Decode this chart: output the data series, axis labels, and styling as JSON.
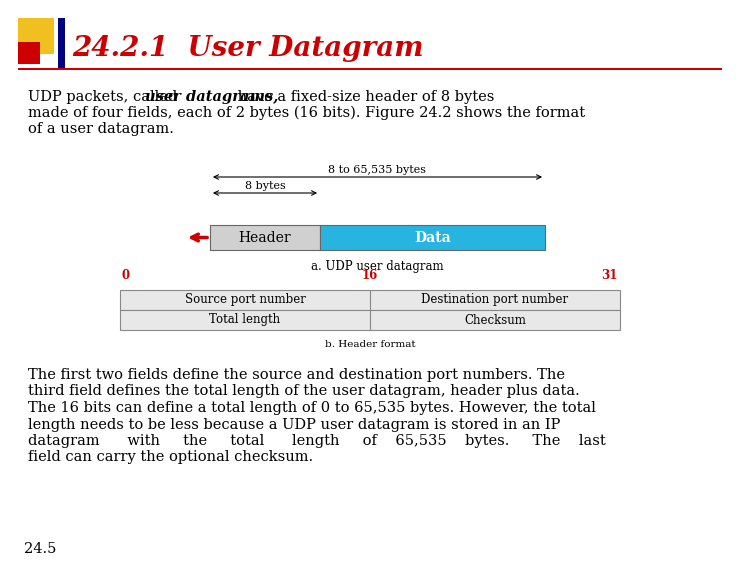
{
  "title": "24.2.1  User Datagram",
  "title_color": "#cc0000",
  "title_fontsize": 20,
  "bg_color": "#ffffff",
  "sq1_color": "#f0c020",
  "sq2_color": "#cc0000",
  "bar_color": "#000080",
  "line_color": "#cc0000",
  "para1_pre": "UDP packets, called ",
  "para1_italic": "user datagrams,",
  "para1_post": " have a fixed-size header of 8 bytes",
  "para1_line2": "made of four fields, each of 2 bytes (16 bits). Figure 24.2 shows the format",
  "para1_line3": "of a user datagram.",
  "diag_label_top": "8 to 65,535 bytes",
  "diag_label_mid": "8 bytes",
  "header_label": "Header",
  "data_label": "Data",
  "header_color": "#d0d0d0",
  "data_color": "#28b4e0",
  "caption_a": "a. UDP user datagram",
  "bit0": "0",
  "bit16": "16",
  "bit31": "31",
  "bit_color": "#cc0000",
  "f1l": "Source port number",
  "f1r": "Destination port number",
  "f2l": "Total length",
  "f2r": "Checksum",
  "cell_color": "#e8e8e8",
  "caption_b": "b. Header format",
  "p2l1": "The first two fields define the source and destination port numbers. The",
  "p2l2": "third field defines the total length of the user datagram, header plus data.",
  "p2l3": "The 16 bits can define a total length of 0 to 65,535 bytes. However, the total",
  "p2l4": "length needs to be less because a UDP user datagram is stored in an IP",
  "p2l5": "datagram      with     the     total      length     of    65,535    bytes.     The    last",
  "p2l6": "field can carry the optional checksum.",
  "footer": "24.5",
  "tfont": 10.5,
  "sfont": 8.5
}
